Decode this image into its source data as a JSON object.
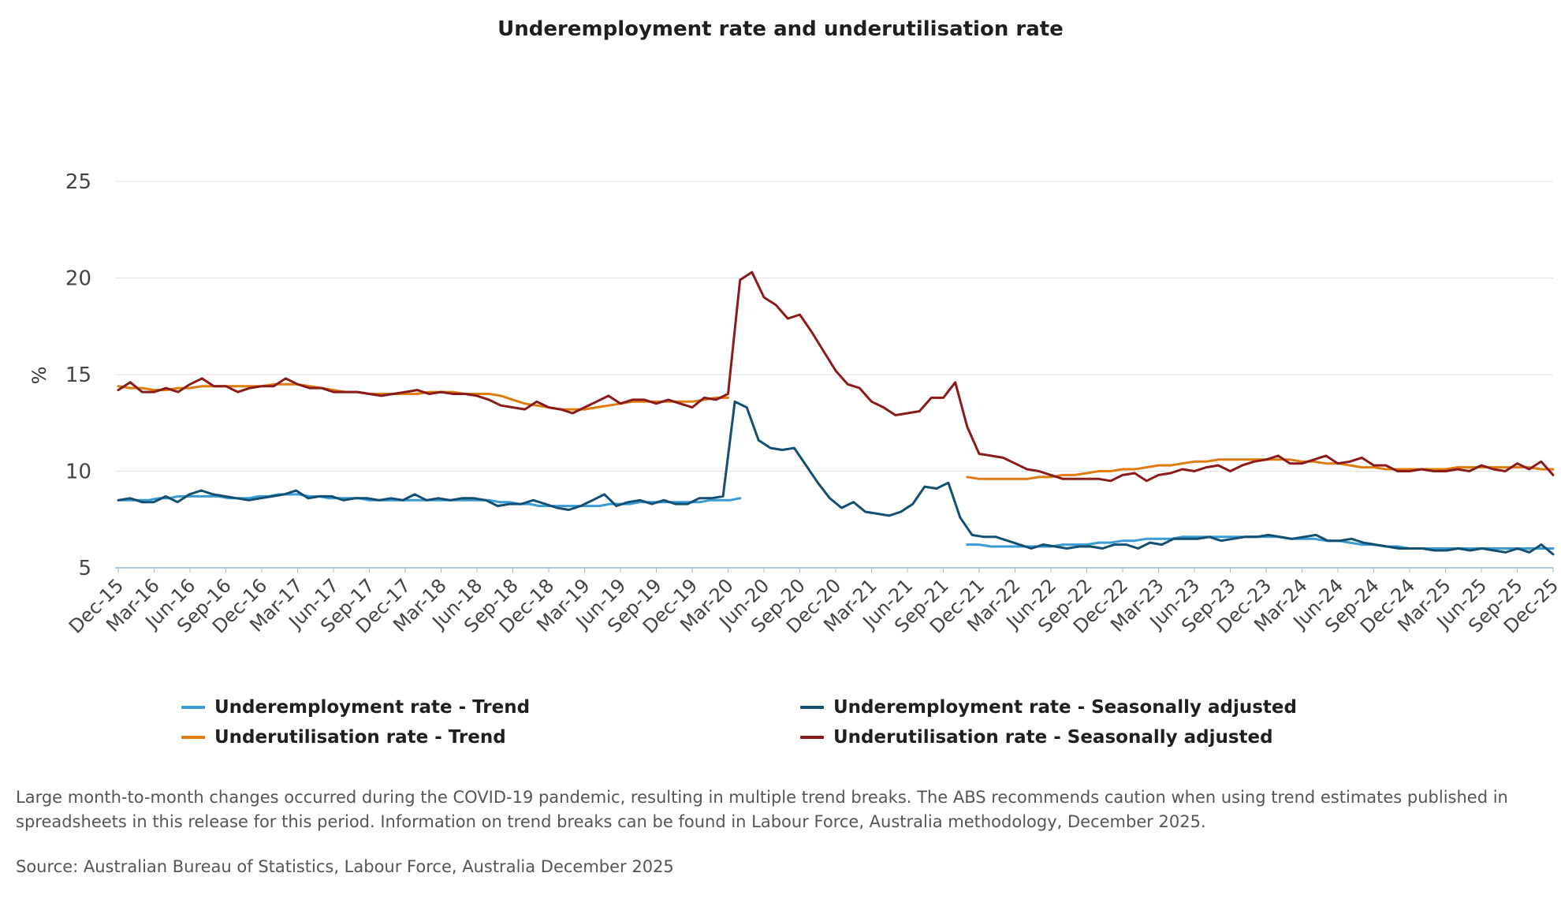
{
  "chart_data": {
    "type": "line",
    "title": "Underemployment rate and underutilisation rate",
    "ylabel": "%",
    "ylim": [
      5,
      25
    ],
    "yticks": [
      5,
      10,
      15,
      20,
      25
    ],
    "xticks": [
      "Dec-15",
      "Mar-16",
      "Jun-16",
      "Sep-16",
      "Dec-16",
      "Mar-17",
      "Jun-17",
      "Sep-17",
      "Dec-17",
      "Mar-18",
      "Jun-18",
      "Sep-18",
      "Dec-18",
      "Mar-19",
      "Jun-19",
      "Sep-19",
      "Dec-19",
      "Mar-20",
      "Jun-20",
      "Sep-20",
      "Dec-20",
      "Mar-21",
      "Jun-21",
      "Sep-21",
      "Dec-21",
      "Mar-22",
      "Jun-22",
      "Sep-22",
      "Dec-22",
      "Mar-23",
      "Jun-23",
      "Sep-23",
      "Dec-23",
      "Mar-24",
      "Jun-24",
      "Sep-24",
      "Dec-24",
      "Mar-25",
      "Jun-25",
      "Sep-25",
      "Dec-25"
    ],
    "grid": "horizontal",
    "legend_position": "bottom",
    "series": [
      {
        "name": "Underemployment rate - Trend",
        "color": "#3a9bd5",
        "values": [
          8.5,
          8.5,
          8.5,
          8.5,
          8.6,
          8.6,
          8.7,
          8.7,
          8.7,
          8.7,
          8.7,
          8.6,
          8.6,
          8.6,
          8.7,
          8.7,
          8.8,
          8.8,
          8.8,
          8.7,
          8.7,
          8.6,
          8.6,
          8.6,
          8.6,
          8.5,
          8.5,
          8.5,
          8.5,
          8.5,
          8.5,
          8.5,
          8.5,
          8.5,
          8.5,
          8.5,
          8.5,
          8.5,
          8.4,
          8.4,
          8.3,
          8.3,
          8.2,
          8.2,
          8.2,
          8.2,
          8.2,
          8.2,
          8.2,
          8.3,
          8.3,
          8.3,
          8.4,
          8.4,
          8.4,
          8.4,
          8.4,
          8.4,
          8.4,
          8.5,
          8.5,
          8.5,
          8.6
        ]
      },
      {
        "name": "Underemployment rate - Seasonally adjusted",
        "color": "#134f72",
        "values": [
          8.5,
          8.6,
          8.4,
          8.4,
          8.7,
          8.4,
          8.8,
          9.0,
          8.8,
          8.7,
          8.6,
          8.5,
          8.6,
          8.7,
          8.8,
          9.0,
          8.6,
          8.7,
          8.7,
          8.5,
          8.6,
          8.6,
          8.5,
          8.6,
          8.5,
          8.8,
          8.5,
          8.6,
          8.5,
          8.6,
          8.6,
          8.5,
          8.2,
          8.3,
          8.3,
          8.5,
          8.3,
          8.1,
          8.0,
          8.2,
          8.5,
          8.8,
          8.2,
          8.4,
          8.5,
          8.3,
          8.5,
          8.3,
          8.3,
          8.6,
          8.6,
          8.7,
          13.6,
          13.3,
          11.6,
          11.2,
          11.1,
          11.2,
          10.3,
          9.4,
          8.6,
          8.1,
          8.4,
          7.9,
          7.8,
          7.7,
          7.9,
          8.3,
          9.2,
          9.1,
          9.4,
          7.6,
          6.7,
          6.6,
          6.6,
          6.4,
          6.2,
          6.0,
          6.2,
          6.1,
          6.0,
          6.1,
          6.1,
          6.0,
          6.2,
          6.2,
          6.0,
          6.3,
          6.2,
          6.5,
          6.5,
          6.5,
          6.6,
          6.4,
          6.5,
          6.6,
          6.6,
          6.7,
          6.6,
          6.5,
          6.6,
          6.7,
          6.4,
          6.4,
          6.5,
          6.3,
          6.2,
          6.1,
          6.0,
          6.0,
          6.0,
          5.9,
          5.9,
          6.0,
          5.9,
          6.0,
          5.9,
          5.8,
          6.0,
          5.8,
          6.2,
          5.7
        ]
      },
      {
        "name": "Underutilisation rate - Trend",
        "color": "#e07b0e",
        "values": [
          14.4,
          14.3,
          14.3,
          14.2,
          14.2,
          14.3,
          14.3,
          14.4,
          14.4,
          14.4,
          14.4,
          14.4,
          14.4,
          14.5,
          14.5,
          14.5,
          14.4,
          14.3,
          14.2,
          14.1,
          14.1,
          14.0,
          14.0,
          14.0,
          14.0,
          14.0,
          14.1,
          14.1,
          14.1,
          14.0,
          14.0,
          14.0,
          13.9,
          13.7,
          13.5,
          13.4,
          13.3,
          13.2,
          13.2,
          13.2,
          13.3,
          13.4,
          13.5,
          13.6,
          13.6,
          13.6,
          13.6,
          13.6,
          13.6,
          13.7,
          13.8,
          13.8
        ]
      },
      {
        "name": "Underutilisation rate - Seasonally adjusted",
        "color": "#8b1a1a",
        "values": [
          14.2,
          14.6,
          14.1,
          14.1,
          14.3,
          14.1,
          14.5,
          14.8,
          14.4,
          14.4,
          14.1,
          14.3,
          14.4,
          14.4,
          14.8,
          14.5,
          14.3,
          14.3,
          14.1,
          14.1,
          14.1,
          14.0,
          13.9,
          14.0,
          14.1,
          14.2,
          14.0,
          14.1,
          14.0,
          14.0,
          13.9,
          13.7,
          13.4,
          13.3,
          13.2,
          13.6,
          13.3,
          13.2,
          13.0,
          13.3,
          13.6,
          13.9,
          13.5,
          13.7,
          13.7,
          13.5,
          13.7,
          13.5,
          13.3,
          13.8,
          13.7,
          14.0,
          19.9,
          20.3,
          19.0,
          18.6,
          17.9,
          18.1,
          17.2,
          16.2,
          15.2,
          14.5,
          14.3,
          13.6,
          13.3,
          12.9,
          13.0,
          13.1,
          13.8,
          13.8,
          14.6,
          12.3,
          10.9,
          10.8,
          10.7,
          10.4,
          10.1,
          10.0,
          9.8,
          9.6,
          9.6,
          9.6,
          9.6,
          9.5,
          9.8,
          9.9,
          9.5,
          9.8,
          9.9,
          10.1,
          10.0,
          10.2,
          10.3,
          10.0,
          10.3,
          10.5,
          10.6,
          10.8,
          10.4,
          10.4,
          10.6,
          10.8,
          10.4,
          10.5,
          10.7,
          10.3,
          10.3,
          10.0,
          10.0,
          10.1,
          10.0,
          10.0,
          10.1,
          10.0,
          10.3,
          10.1,
          10.0,
          10.4,
          10.1,
          10.5,
          9.8
        ]
      }
    ],
    "trend_tail": {
      "underemployment": [
        6.2,
        6.2,
        6.1,
        6.1,
        6.1,
        6.1,
        6.1,
        6.1,
        6.2,
        6.2,
        6.2,
        6.3,
        6.3,
        6.4,
        6.4,
        6.5,
        6.5,
        6.5,
        6.6,
        6.6,
        6.6,
        6.6,
        6.6,
        6.6,
        6.6,
        6.6,
        6.6,
        6.5,
        6.5,
        6.5,
        6.4,
        6.4,
        6.3,
        6.2,
        6.2,
        6.1,
        6.1,
        6.0,
        6.0,
        6.0,
        6.0,
        6.0,
        6.0,
        6.0,
        6.0,
        6.0,
        6.0,
        6.0,
        6.0,
        6.0
      ],
      "underutilisation": [
        9.7,
        9.6,
        9.6,
        9.6,
        9.6,
        9.6,
        9.7,
        9.7,
        9.8,
        9.8,
        9.9,
        10.0,
        10.0,
        10.1,
        10.1,
        10.2,
        10.3,
        10.3,
        10.4,
        10.5,
        10.5,
        10.6,
        10.6,
        10.6,
        10.6,
        10.6,
        10.6,
        10.6,
        10.5,
        10.5,
        10.4,
        10.4,
        10.3,
        10.2,
        10.2,
        10.1,
        10.1,
        10.1,
        10.1,
        10.1,
        10.1,
        10.2,
        10.2,
        10.2,
        10.2,
        10.2,
        10.2,
        10.2,
        10.1,
        10.1
      ]
    }
  },
  "legend": [
    {
      "label": "Underemployment rate - Trend",
      "color": "#3a9bd5"
    },
    {
      "label": "Underemployment rate - Seasonally adjusted",
      "color": "#134f72"
    },
    {
      "label": "Underutilisation rate - Trend",
      "color": "#e07b0e"
    },
    {
      "label": "Underutilisation rate - Seasonally adjusted",
      "color": "#8b1a1a"
    }
  ],
  "footnote": "Large month-to-month changes occurred during the COVID-19 pandemic, resulting in multiple trend breaks. The ABS recommends caution when using trend estimates published in spreadsheets in this release for this period. Information on trend breaks can be found in Labour Force, Australia methodology, December 2025.",
  "source": "Source: Australian Bureau of Statistics, Labour Force, Australia December 2025"
}
